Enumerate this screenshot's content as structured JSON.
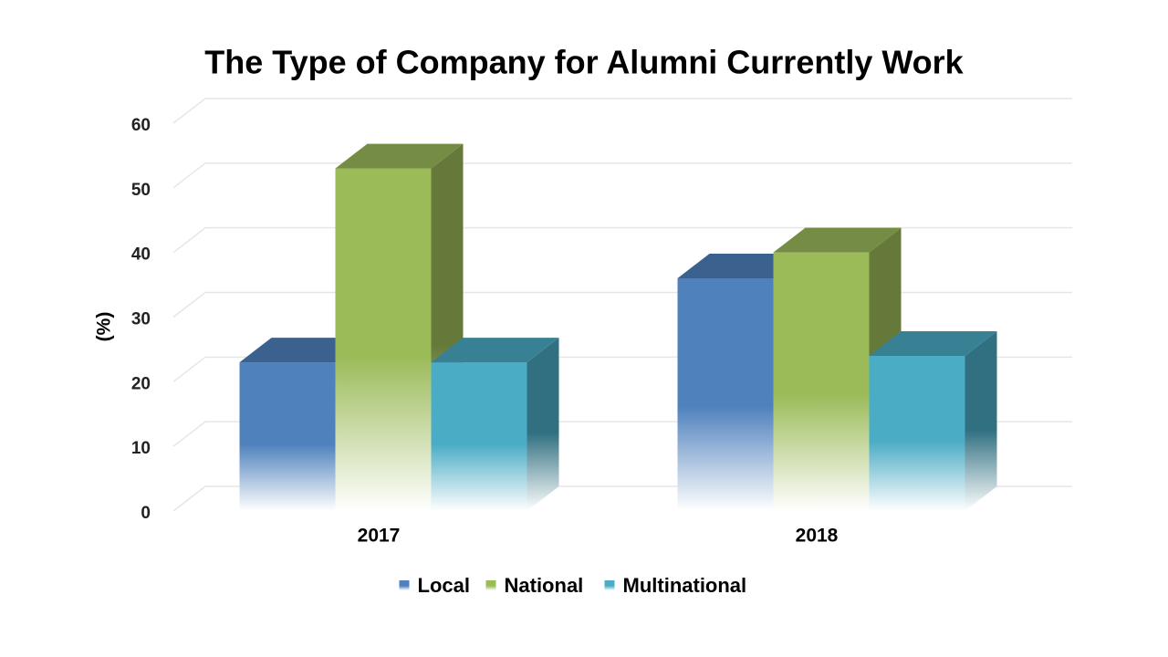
{
  "chart_data": {
    "type": "bar3d",
    "title": "The Type of Company for Alumni Currently Work",
    "y_label": "(%)",
    "categories": [
      "2017",
      "2018"
    ],
    "series": [
      {
        "name": "Local",
        "color": "#4f81bd",
        "values": [
          23,
          36
        ]
      },
      {
        "name": "National",
        "color": "#9bbb59",
        "values": [
          53,
          40
        ]
      },
      {
        "name": "Multinational",
        "color": "#4bacc6",
        "values": [
          23,
          24
        ]
      }
    ],
    "ylim": [
      0,
      60
    ],
    "yticks": [
      0,
      10,
      20,
      30,
      40,
      50,
      60
    ],
    "grid": true,
    "legend": "bottom"
  }
}
